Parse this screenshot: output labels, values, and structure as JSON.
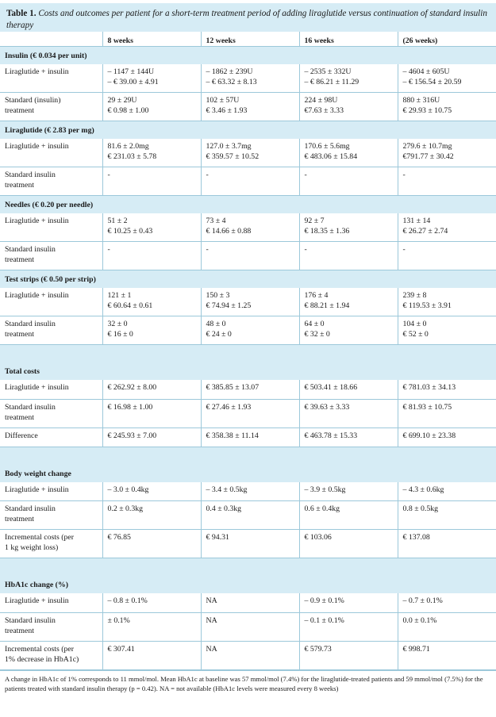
{
  "caption": {
    "lead": "Table 1.",
    "rest": "Costs and outcomes per patient for a short-term treatment period of adding liraglutide versus continuation of standard insulin therapy"
  },
  "columns": [
    "",
    "8 weeks",
    "12 weeks",
    "16 weeks",
    "(26 weeks)"
  ],
  "sections": [
    {
      "title": "Insulin (€ 0.034 per unit)",
      "rows": [
        {
          "label": [
            "Liraglutide + insulin"
          ],
          "cells": [
            [
              "– 1147 ± 144U",
              "– € 39.00 ± 4.91"
            ],
            [
              "– 1862 ± 239U",
              "– € 63.32 ± 8.13"
            ],
            [
              "– 2535 ± 332U",
              "– € 86.21 ± 11.29"
            ],
            [
              "– 4604 ± 605U",
              "– € 156.54 ± 20.59"
            ]
          ]
        },
        {
          "label": [
            "Standard (insulin)",
            "treatment"
          ],
          "cells": [
            [
              "29 ± 29U",
              "€ 0.98 ± 1.00"
            ],
            [
              "102 ± 57U",
              "€ 3.46 ± 1.93"
            ],
            [
              "224 ± 98U",
              "€7.63 ± 3.33"
            ],
            [
              "880 ± 316U",
              "€ 29.93 ± 10.75"
            ]
          ]
        }
      ]
    },
    {
      "title": "Liraglutide (€ 2.83 per mg)",
      "rows": [
        {
          "label": [
            "Liraglutide + insulin"
          ],
          "cells": [
            [
              "81.6 ± 2.0mg",
              "€ 231.03 ± 5.78"
            ],
            [
              "127.0 ± 3.7mg",
              "€ 359.57 ± 10.52"
            ],
            [
              "170.6 ± 5.6mg",
              "€ 483.06 ± 15.84"
            ],
            [
              "279.6 ± 10.7mg",
              "€791.77 ± 30.42"
            ]
          ]
        },
        {
          "label": [
            "Standard insulin",
            "treatment"
          ],
          "cells": [
            [
              "-"
            ],
            [
              "-"
            ],
            [
              "-"
            ],
            [
              "-"
            ]
          ]
        }
      ]
    },
    {
      "title": "Needles (€ 0.20 per needle)",
      "rows": [
        {
          "label": [
            "Liraglutide + insulin"
          ],
          "cells": [
            [
              "51 ± 2",
              "€ 10.25 ± 0.43"
            ],
            [
              "73 ± 4",
              "€ 14.66 ± 0.88"
            ],
            [
              "92 ± 7",
              "€ 18.35 ± 1.36"
            ],
            [
              "131 ± 14",
              "€ 26.27 ± 2.74"
            ]
          ]
        },
        {
          "label": [
            "Standard insulin",
            "treatment"
          ],
          "cells": [
            [
              "-"
            ],
            [
              "-"
            ],
            [
              "-"
            ],
            [
              "-"
            ]
          ]
        }
      ]
    },
    {
      "title": "Test strips (€ 0.50 per strip)",
      "rows": [
        {
          "label": [
            "Liraglutide + insulin"
          ],
          "cells": [
            [
              "121 ± 1",
              "€ 60.64 ± 0.61"
            ],
            [
              "150 ± 3",
              "€ 74.94 ± 1.25"
            ],
            [
              "176 ± 4",
              "€ 88.21 ± 1.94"
            ],
            [
              "239 ± 8",
              "€ 119.53 ± 3.91"
            ]
          ]
        },
        {
          "label": [
            "Standard insulin",
            "treatment"
          ],
          "cells": [
            [
              "32 ± 0",
              "€ 16 ± 0"
            ],
            [
              "48 ± 0",
              "€ 24 ± 0"
            ],
            [
              "64 ± 0",
              "€ 32 ± 0"
            ],
            [
              "104 ± 0",
              "€ 52 ± 0"
            ]
          ]
        }
      ]
    },
    {
      "spacer": true
    },
    {
      "title": "Total costs",
      "rows": [
        {
          "label": [
            "Liraglutide + insulin"
          ],
          "cells": [
            [
              "€ 262.92 ± 8.00"
            ],
            [
              "€ 385.85 ± 13.07"
            ],
            [
              "€ 503.41 ± 18.66"
            ],
            [
              "€ 781.03 ± 34.13"
            ]
          ]
        },
        {
          "label": [
            "Standard insulin",
            "treatment"
          ],
          "cells": [
            [
              "€ 16.98 ± 1.00"
            ],
            [
              "€ 27.46 ± 1.93"
            ],
            [
              "€ 39.63 ± 3.33"
            ],
            [
              "€ 81.93 ± 10.75"
            ]
          ]
        },
        {
          "label": [
            "Difference"
          ],
          "cells": [
            [
              "€ 245.93 ± 7.00"
            ],
            [
              "€ 358.38 ± 11.14"
            ],
            [
              "€ 463.78 ± 15.33"
            ],
            [
              "€ 699.10 ± 23.38"
            ]
          ]
        }
      ]
    },
    {
      "spacer": true
    },
    {
      "title": "Body weight change",
      "rows": [
        {
          "label": [
            "Liraglutide + insulin"
          ],
          "cells": [
            [
              "– 3.0 ± 0.4kg"
            ],
            [
              "– 3.4 ± 0.5kg"
            ],
            [
              "– 3.9 ± 0.5kg"
            ],
            [
              "– 4.3 ± 0.6kg"
            ]
          ]
        },
        {
          "label": [
            "Standard insulin",
            "treatment"
          ],
          "cells": [
            [
              "0.2 ± 0.3kg"
            ],
            [
              "0.4 ± 0.3kg"
            ],
            [
              "0.6 ± 0.4kg"
            ],
            [
              "0.8 ± 0.5kg"
            ]
          ]
        },
        {
          "label": [
            "Incremental costs (per",
            "1 kg weight loss)"
          ],
          "cells": [
            [
              "€ 76.85"
            ],
            [
              "€ 94.31"
            ],
            [
              "€ 103.06"
            ],
            [
              "€ 137.08"
            ]
          ]
        }
      ]
    },
    {
      "spacer": true
    },
    {
      "title": "HbA1c change (%)",
      "rows": [
        {
          "label": [
            "Liraglutide + insulin"
          ],
          "cells": [
            [
              "– 0.8 ± 0.1%"
            ],
            [
              "NA"
            ],
            [
              "– 0.9 ± 0.1%"
            ],
            [
              "– 0.7 ± 0.1%"
            ]
          ]
        },
        {
          "label": [
            "Standard insulin",
            "treatment"
          ],
          "cells": [
            [
              "± 0.1%"
            ],
            [
              "NA"
            ],
            [
              "– 0.1 ± 0.1%"
            ],
            [
              "0.0 ± 0.1%"
            ]
          ]
        },
        {
          "label": [
            "Incremental costs (per",
            "1% decrease in HbA1c)"
          ],
          "cells": [
            [
              "€ 307.41"
            ],
            [
              "NA"
            ],
            [
              "€ 579.73"
            ],
            [
              "€ 998.71"
            ]
          ]
        }
      ]
    }
  ],
  "footnote": "A change in HbA1c of 1% corresponds to 11 mmol/mol. Mean HbA1c at baseline was 57 mmol/mol (7.4%) for the liraglutide-treated patients and 59 mmol/mol (7.5%) for the patients treated with standard insulin therapy (p = 0.42). NA = not available (HbA1c levels were measured every 8 weeks)"
}
